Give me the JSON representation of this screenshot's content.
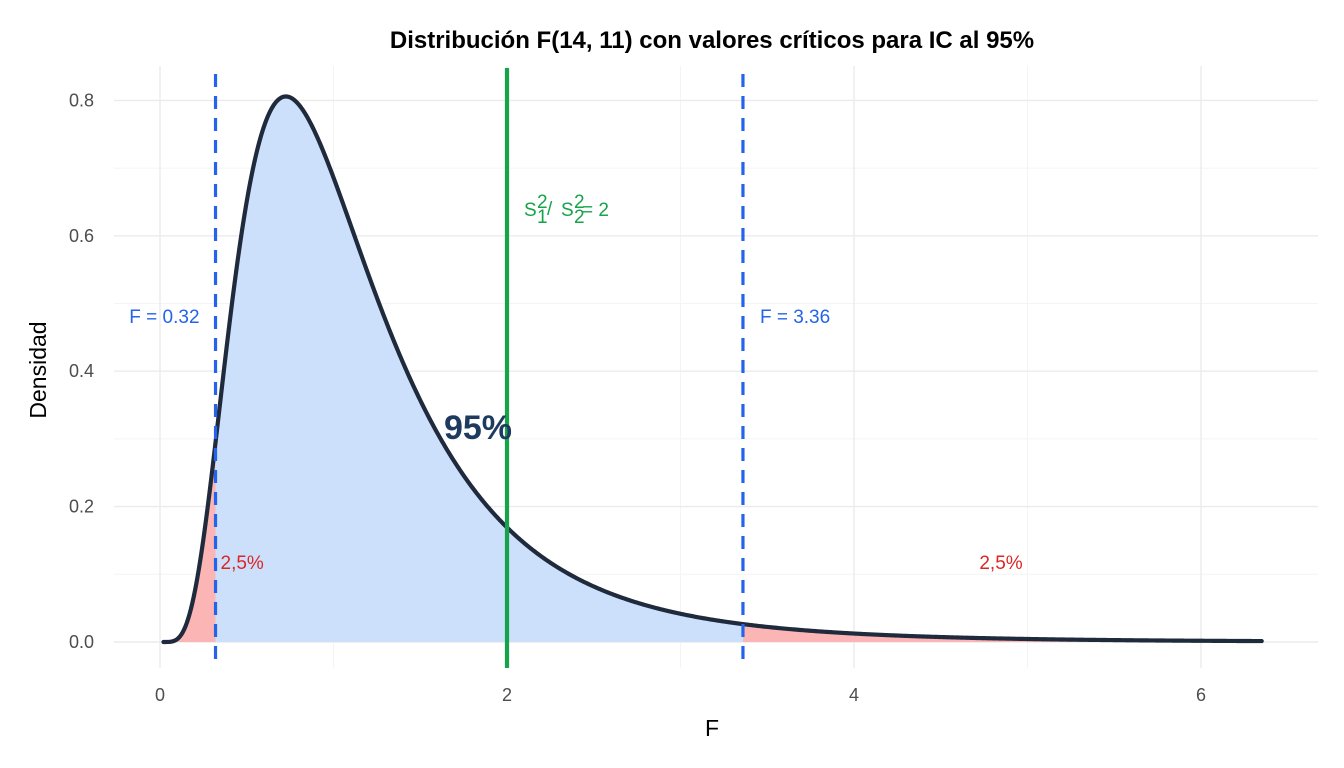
{
  "chart_data": {
    "type": "area",
    "title": "Distribución F(14, 11) con valores críticos para IC al 95%",
    "xlabel": "F",
    "ylabel": "Densidad",
    "xlim": [
      0,
      6.35
    ],
    "ylim": [
      0,
      0.83
    ],
    "x_ticks": [
      0,
      2,
      4,
      6
    ],
    "y_ticks": [
      0.0,
      0.2,
      0.4,
      0.6,
      0.8
    ],
    "x_tick_labels": [
      "0",
      "2",
      "4",
      "6"
    ],
    "y_tick_labels": [
      "0.0",
      "0.2",
      "0.4",
      "0.6",
      "0.8"
    ],
    "grid": true,
    "distribution": {
      "df1": 14,
      "df2": 11
    },
    "critical_values": [
      {
        "x": 0.32,
        "label": "F = 0.32"
      },
      {
        "x": 3.36,
        "label": "F = 3.36"
      }
    ],
    "observed_ratio": {
      "x": 2,
      "label_parts": {
        "s": "S",
        "sup1": "2",
        "sub1": "1",
        "slash": "/",
        "sup2": "2",
        "sub2": "2",
        "eq": " = 2"
      }
    },
    "regions": [
      {
        "name": "lower-tail",
        "from": 0,
        "to": 0.32,
        "label": "2,5%",
        "color": "#fbb5b5"
      },
      {
        "name": "center",
        "from": 0.32,
        "to": 3.36,
        "label": "95%",
        "color": "#cce0fc"
      },
      {
        "name": "upper-tail",
        "from": 3.36,
        "to": 6.35,
        "label": "2,5%",
        "color": "#fbb5b5"
      }
    ],
    "colors": {
      "curve": "#1f2a3c",
      "critical_line": "#2563eb",
      "observed_line": "#16a34a",
      "tail_label": "#dc2626",
      "center_label": "#1e3a5f"
    }
  }
}
